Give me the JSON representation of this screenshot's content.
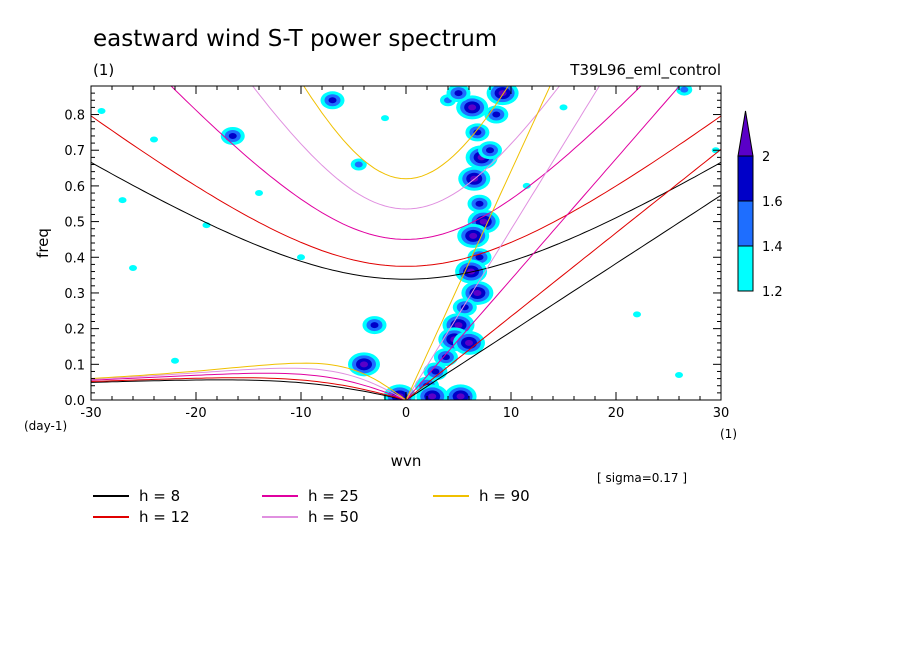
{
  "chart_data": {
    "type": "heatmap",
    "title": "eastward wind S-T power spectrum",
    "subtitle_left": "(1)",
    "subtitle_right": "T39L96_eml_control",
    "xlabel": "wvn",
    "ylabel": "freq",
    "x_unit": "(1)",
    "y_unit": "(day-1)",
    "xlim": [
      -30,
      30
    ],
    "ylim": [
      0,
      0.88
    ],
    "x_ticks": [
      -30,
      -20,
      -10,
      0,
      10,
      20,
      30
    ],
    "x_tick_labels": [
      "-30",
      "-20",
      "-10",
      "0",
      "10",
      "20",
      "30"
    ],
    "y_ticks": [
      0.0,
      0.1,
      0.2,
      0.3,
      0.4,
      0.5,
      0.6,
      0.7,
      0.8
    ],
    "y_tick_labels": [
      "0.0",
      "0.1",
      "0.2",
      "0.3",
      "0.4",
      "0.5",
      "0.6",
      "0.7",
      "0.8"
    ],
    "annotation": "[ sigma=0.17 ]",
    "colorbar": {
      "levels": [
        1.2,
        1.4,
        1.6,
        2
      ],
      "level_labels": [
        "1.2",
        "1.4",
        "1.6",
        "2"
      ],
      "colors": [
        "#00ffff",
        "#1e6eff",
        "#0000c8",
        "#5a00c8"
      ]
    },
    "dispersion_curves": [
      {
        "label": "h =  8",
        "h": 8,
        "color": "#000000"
      },
      {
        "label": "h = 12",
        "h": 12,
        "color": "#e00000"
      },
      {
        "label": "h = 25",
        "h": 25,
        "color": "#e000a0"
      },
      {
        "label": "h = 50",
        "h": 50,
        "color": "#e090e0"
      },
      {
        "label": "h = 90",
        "h": 90,
        "color": "#f0c000"
      }
    ],
    "blobs": [
      {
        "k": 6.3,
        "f": 0.82,
        "level": 3
      },
      {
        "k": 6.8,
        "f": 0.75,
        "level": 2
      },
      {
        "k": 7.2,
        "f": 0.68,
        "level": 3
      },
      {
        "k": 6.5,
        "f": 0.62,
        "level": 3
      },
      {
        "k": 7.0,
        "f": 0.55,
        "level": 2
      },
      {
        "k": 7.4,
        "f": 0.5,
        "level": 3
      },
      {
        "k": 6.4,
        "f": 0.46,
        "level": 3
      },
      {
        "k": 7.0,
        "f": 0.4,
        "level": 2
      },
      {
        "k": 6.2,
        "f": 0.36,
        "level": 3
      },
      {
        "k": 6.8,
        "f": 0.3,
        "level": 3
      },
      {
        "k": 5.6,
        "f": 0.26,
        "level": 2
      },
      {
        "k": 5.0,
        "f": 0.21,
        "level": 3
      },
      {
        "k": 4.6,
        "f": 0.17,
        "level": 3
      },
      {
        "k": 6.0,
        "f": 0.16,
        "level": 3
      },
      {
        "k": 3.8,
        "f": 0.12,
        "level": 2
      },
      {
        "k": 2.8,
        "f": 0.08,
        "level": 2
      },
      {
        "k": 2.0,
        "f": 0.04,
        "level": 2
      },
      {
        "k": 2.5,
        "f": 0.01,
        "level": 3
      },
      {
        "k": 5.2,
        "f": 0.01,
        "level": 3
      },
      {
        "k": 8.6,
        "f": 0.8,
        "level": 2
      },
      {
        "k": 9.2,
        "f": 0.86,
        "level": 3
      },
      {
        "k": 8.0,
        "f": 0.7,
        "level": 2
      },
      {
        "k": -4.0,
        "f": 0.1,
        "level": 3
      },
      {
        "k": -3.0,
        "f": 0.21,
        "level": 2
      },
      {
        "k": -0.6,
        "f": 0.01,
        "level": 3
      },
      {
        "k": -7.0,
        "f": 0.84,
        "level": 2
      },
      {
        "k": -16.5,
        "f": 0.74,
        "level": 2
      },
      {
        "k": -4.5,
        "f": 0.66,
        "level": 1
      },
      {
        "k": 4.0,
        "f": 0.84,
        "level": 1
      },
      {
        "k": 5.0,
        "f": 0.86,
        "level": 2
      },
      {
        "k": -14.0,
        "f": 0.58,
        "level": 0
      },
      {
        "k": -24.0,
        "f": 0.73,
        "level": 0
      },
      {
        "k": 26.5,
        "f": 0.87,
        "level": 1
      },
      {
        "k": 29.5,
        "f": 0.7,
        "level": 0
      },
      {
        "k": -27.0,
        "f": 0.56,
        "level": 0
      },
      {
        "k": -19.0,
        "f": 0.49,
        "level": 0
      },
      {
        "k": -10.0,
        "f": 0.4,
        "level": 0
      },
      {
        "k": -2.0,
        "f": 0.79,
        "level": 0
      },
      {
        "k": 15.0,
        "f": 0.82,
        "level": 0
      },
      {
        "k": 26.0,
        "f": 0.07,
        "level": 0
      },
      {
        "k": -22.0,
        "f": 0.11,
        "level": 0
      },
      {
        "k": 22.0,
        "f": 0.24,
        "level": 0
      },
      {
        "k": -26.0,
        "f": 0.37,
        "level": 0
      },
      {
        "k": 11.5,
        "f": 0.6,
        "level": 0
      },
      {
        "k": -29.0,
        "f": 0.81,
        "level": 0
      }
    ]
  }
}
